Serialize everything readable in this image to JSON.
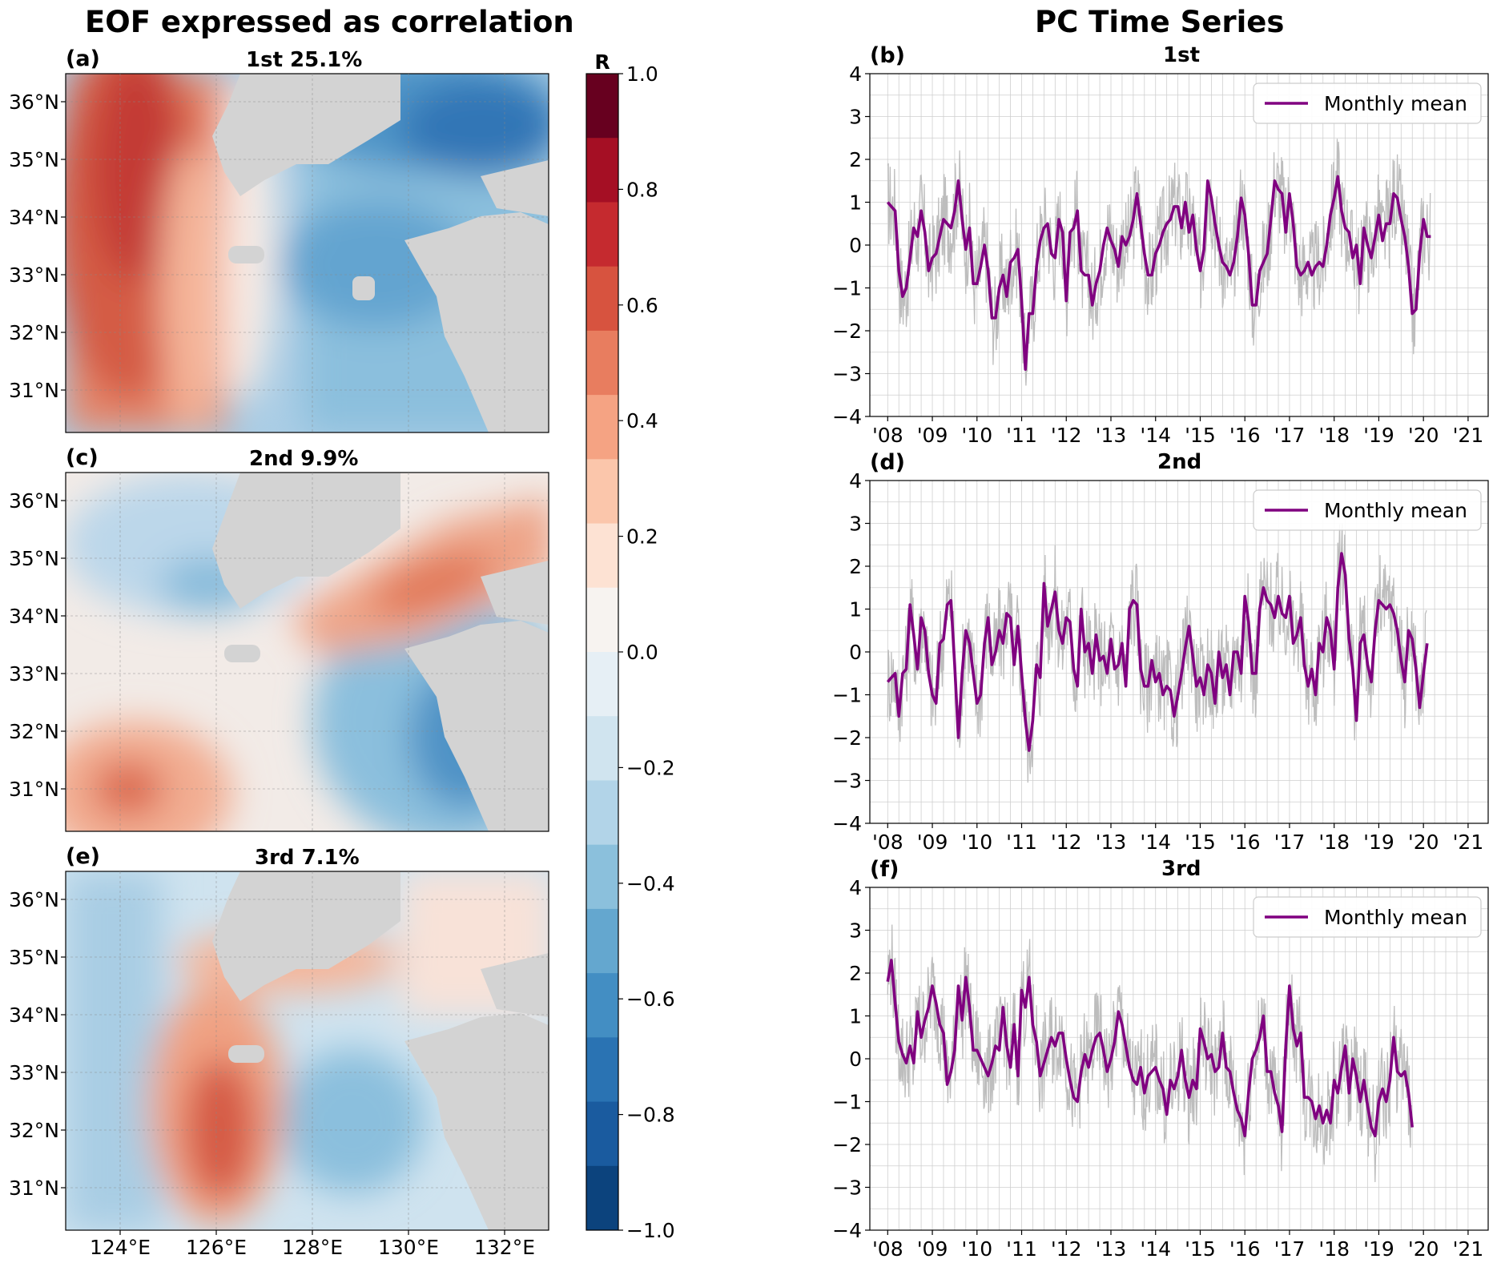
{
  "titles": {
    "left": "EOF expressed as correlation",
    "right": "PC Time Series"
  },
  "maps": [
    {
      "label": "(a)",
      "title": "1st 25.1%"
    },
    {
      "label": "(c)",
      "title": "2nd 9.9%"
    },
    {
      "label": "(e)",
      "title": "3rd 7.1%"
    }
  ],
  "map_axes": {
    "lat_ticks": [
      "36°N",
      "35°N",
      "34°N",
      "33°N",
      "32°N",
      "31°N"
    ],
    "lon_ticks": [
      "124°E",
      "126°E",
      "128°E",
      "130°E",
      "132°E"
    ]
  },
  "colorbar": {
    "label": "R",
    "ticks": [
      "1.0",
      "0.8",
      "0.6",
      "0.4",
      "0.2",
      "0.0",
      "−0.2",
      "−0.4",
      "−0.6",
      "−0.8",
      "−1.0"
    ],
    "colors": [
      "#67001f",
      "#a50f24",
      "#c52a2f",
      "#d7533f",
      "#e87d5f",
      "#f5a383",
      "#fbc6ab",
      "#fde2d3",
      "#f7f3f0",
      "#e6eff5",
      "#d0e4ef",
      "#b2d4e8",
      "#8bc0dc",
      "#64a7cf",
      "#438ec3",
      "#2a73b3",
      "#1a5b9f",
      "#0c437d"
    ]
  },
  "legend_label": "Monthly mean",
  "colors": {
    "monthly": "#800080",
    "raw": "#bdbdbd",
    "land": "#d3d3d3"
  },
  "chart_data": [
    {
      "type": "line",
      "label": "(b)",
      "title": "1st",
      "xlabel": "",
      "ylabel": "",
      "x_ticks": [
        "'08",
        "'09",
        "'10",
        "'11",
        "'12",
        "'13",
        "'14",
        "'15",
        "'16",
        "'17",
        "'18",
        "'19",
        "'20",
        "'21"
      ],
      "ylim": [
        -4,
        4
      ],
      "y_ticks": [
        "4",
        "3",
        "2",
        "1",
        "0",
        "−1",
        "−2",
        "−3",
        "−4"
      ],
      "series": [
        {
          "name": "Monthly mean",
          "x_start": 2008.0,
          "dx": 0.08333,
          "values": [
            1.0,
            0.9,
            0.8,
            -0.6,
            -1.2,
            -1.0,
            -0.3,
            0.4,
            0.2,
            0.8,
            0.3,
            -0.6,
            -0.3,
            -0.2,
            0.2,
            0.6,
            0.5,
            0.4,
            0.8,
            1.5,
            0.6,
            -0.1,
            0.4,
            -0.9,
            -0.9,
            -0.5,
            0.0,
            -0.6,
            -1.7,
            -1.7,
            -1.0,
            -0.7,
            -1.2,
            -0.4,
            -0.3,
            -0.1,
            -1.3,
            -2.9,
            -1.6,
            -1.6,
            -0.5,
            0.1,
            0.4,
            0.5,
            -0.2,
            -0.3,
            0.6,
            0.3,
            -1.3,
            0.3,
            0.4,
            0.8,
            -0.6,
            -0.7,
            -0.7,
            -1.4,
            -0.9,
            -0.6,
            0.0,
            0.4,
            0.1,
            -0.1,
            -0.5,
            0.2,
            0.0,
            0.2,
            0.6,
            1.2,
            0.5,
            -0.2,
            -0.7,
            -0.7,
            -0.2,
            0.0,
            0.3,
            0.5,
            0.6,
            0.9,
            0.9,
            0.4,
            1.0,
            0.3,
            0.7,
            -0.1,
            -0.6,
            -0.1,
            1.5,
            1.1,
            0.5,
            0.0,
            -0.4,
            -0.5,
            -0.7,
            -0.4,
            0.2,
            1.1,
            0.7,
            -0.2,
            -1.4,
            -1.4,
            -0.6,
            -0.4,
            -0.2,
            0.6,
            1.5,
            1.3,
            1.2,
            0.3,
            1.2,
            0.5,
            -0.5,
            -0.7,
            -0.6,
            -0.4,
            -0.7,
            -0.5,
            -0.4,
            -0.5,
            0.0,
            0.7,
            1.1,
            1.6,
            0.8,
            0.4,
            0.3,
            -0.3,
            0.0,
            -0.9,
            0.4,
            0.0,
            -0.3,
            0.2,
            0.7,
            0.1,
            0.5,
            0.5,
            1.2,
            1.1,
            0.6,
            0.2,
            -0.5,
            -1.6,
            -1.5,
            -0.2,
            0.6,
            0.2,
            0.2
          ]
        }
      ]
    },
    {
      "type": "line",
      "label": "(d)",
      "title": "2nd",
      "xlabel": "",
      "ylabel": "",
      "x_ticks": [
        "'08",
        "'09",
        "'10",
        "'11",
        "'12",
        "'13",
        "'14",
        "'15",
        "'16",
        "'17",
        "'18",
        "'19",
        "'20",
        "'21"
      ],
      "ylim": [
        -4,
        4
      ],
      "y_ticks": [
        "4",
        "3",
        "2",
        "1",
        "0",
        "−1",
        "−2",
        "−3",
        "−4"
      ],
      "series": [
        {
          "name": "Monthly mean",
          "x_start": 2008.0,
          "dx": 0.08333,
          "values": [
            -0.7,
            -0.6,
            -0.5,
            -1.5,
            -0.5,
            -0.4,
            1.1,
            0.4,
            -0.4,
            0.8,
            0.5,
            -0.5,
            -1.0,
            -1.2,
            0.2,
            0.3,
            1.1,
            1.2,
            -0.3,
            -2.0,
            -0.5,
            0.5,
            0.2,
            -0.5,
            -1.2,
            -1.0,
            0.2,
            0.8,
            -0.3,
            0.0,
            0.5,
            0.2,
            0.9,
            0.8,
            -0.3,
            0.6,
            -0.5,
            -1.6,
            -2.3,
            -1.6,
            -0.3,
            -0.6,
            1.6,
            0.6,
            1.0,
            1.4,
            0.5,
            0.2,
            0.8,
            0.7,
            -0.4,
            -0.8,
            1.0,
            0.0,
            0.2,
            -0.5,
            0.4,
            -0.2,
            -0.1,
            -0.5,
            0.3,
            -0.4,
            -0.3,
            0.2,
            -0.8,
            1.0,
            1.2,
            1.1,
            -0.4,
            -0.8,
            -0.8,
            -0.2,
            -0.7,
            -0.5,
            -1.0,
            -0.8,
            -0.9,
            -1.5,
            -1.0,
            -0.5,
            0.1,
            0.6,
            -0.1,
            -0.8,
            -0.6,
            -1.0,
            -0.3,
            -0.5,
            -1.2,
            0.0,
            -0.6,
            -0.3,
            -1.0,
            0.0,
            0.0,
            -0.5,
            1.3,
            0.7,
            -0.5,
            -0.5,
            1.0,
            1.5,
            1.2,
            1.1,
            0.8,
            1.3,
            0.9,
            0.8,
            1.3,
            0.2,
            0.4,
            0.8,
            -0.3,
            -0.8,
            -0.4,
            -1.0,
            0.2,
            0.0,
            0.8,
            0.5,
            -0.4,
            1.5,
            2.3,
            1.8,
            0.3,
            -0.4,
            -1.6,
            0.2,
            0.4,
            -0.3,
            -0.7,
            0.5,
            1.2,
            1.1,
            1.0,
            1.1,
            0.9,
            0.5,
            -0.2,
            -0.7,
            0.5,
            0.3,
            -0.4,
            -1.3,
            -0.5,
            0.2
          ]
        }
      ]
    },
    {
      "type": "line",
      "label": "(f)",
      "title": "3rd",
      "xlabel": "",
      "ylabel": "",
      "x_ticks": [
        "'08",
        "'09",
        "'10",
        "'11",
        "'12",
        "'13",
        "'14",
        "'15",
        "'16",
        "'17",
        "'18",
        "'19",
        "'20",
        "'21"
      ],
      "ylim": [
        -4,
        4
      ],
      "y_ticks": [
        "4",
        "3",
        "2",
        "1",
        "0",
        "−1",
        "−2",
        "−3",
        "−4"
      ],
      "series": [
        {
          "name": "Monthly mean",
          "x_start": 2008.0,
          "dx": 0.08333,
          "values": [
            1.8,
            2.3,
            1.3,
            0.4,
            0.1,
            -0.1,
            0.3,
            -0.1,
            1.1,
            0.5,
            0.9,
            1.2,
            1.7,
            1.3,
            0.8,
            0.6,
            -0.6,
            -0.3,
            0.2,
            1.7,
            0.9,
            1.9,
            1.2,
            0.2,
            0.2,
            0.0,
            -0.2,
            -0.4,
            -0.1,
            0.3,
            0.2,
            1.2,
            0.3,
            -0.2,
            0.8,
            -0.4,
            1.6,
            1.2,
            1.9,
            0.8,
            0.4,
            -0.4,
            -0.1,
            0.2,
            0.5,
            0.3,
            0.6,
            0.6,
            0.0,
            -0.5,
            -0.9,
            -1.0,
            -0.3,
            0.1,
            -0.2,
            0.2,
            0.5,
            0.6,
            0.2,
            -0.3,
            0.0,
            0.4,
            1.1,
            0.8,
            0.3,
            -0.2,
            -0.5,
            -0.6,
            -0.2,
            -0.8,
            -0.4,
            -0.3,
            -0.2,
            -0.5,
            -0.7,
            -1.3,
            -0.5,
            -0.7,
            -0.4,
            0.2,
            -0.5,
            -0.9,
            -0.5,
            -0.7,
            0.7,
            0.4,
            0.0,
            0.1,
            -0.3,
            -0.2,
            0.6,
            -0.2,
            -0.3,
            -0.8,
            -1.2,
            -1.4,
            -1.8,
            -0.8,
            0.0,
            0.2,
            0.5,
            1.0,
            -0.3,
            -0.3,
            -0.8,
            -1.1,
            -1.7,
            0.3,
            1.7,
            0.7,
            0.3,
            0.6,
            -0.9,
            -0.9,
            -1.0,
            -1.4,
            -1.1,
            -1.5,
            -1.2,
            -1.5,
            -0.5,
            -0.8,
            -0.2,
            0.3,
            -0.8,
            0.0,
            -0.4,
            -1.0,
            -0.5,
            -1.1,
            -1.6,
            -1.8,
            -1.0,
            -0.7,
            -1.0,
            -0.5,
            0.5,
            -0.3,
            -0.4,
            -0.3,
            -0.8,
            -1.6
          ]
        }
      ]
    }
  ]
}
